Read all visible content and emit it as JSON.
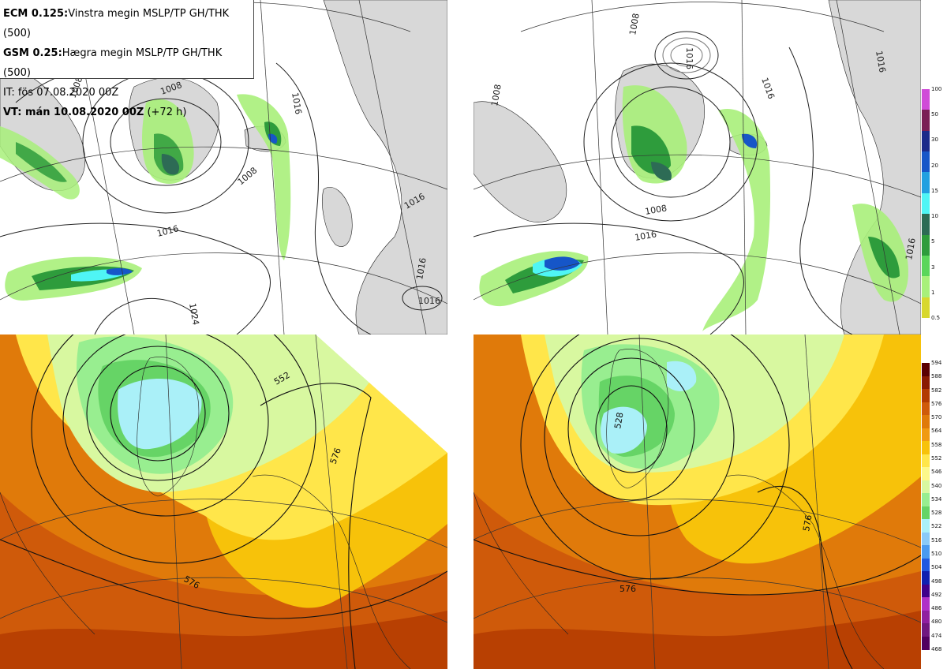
{
  "info": {
    "line1_bold": "ECM 0.125:",
    "line1_rest": "Vinstra megin MSLP/TP GH/THK (500)",
    "line2_bold": "GSM 0.25:",
    "line2_rest": "Hægra megin MSLP/TP GH/THK (500)",
    "line3": "IT: fös 07.08.2020 00Z",
    "line4_bold": "VT: mán 10.08.2020 00Z",
    "line4_rest": "(+72 h)"
  },
  "precip_colorbar": {
    "ticks": [
      "100",
      "50",
      "30",
      "20",
      "15",
      "10",
      "5",
      "3",
      "1",
      "0.5"
    ],
    "colors": [
      "#d04bd8",
      "#7a1f55",
      "#1b2a8a",
      "#1656c8",
      "#22a0e0",
      "#4ff5f5",
      "#2d6b55",
      "#2e9c3c",
      "#5bd65b",
      "#a8f07a",
      "#d8d82e"
    ]
  },
  "thk_colorbar": {
    "ticks": [
      "594",
      "588",
      "582",
      "576",
      "570",
      "564",
      "558",
      "552",
      "546",
      "540",
      "534",
      "528",
      "522",
      "516",
      "510",
      "504",
      "498",
      "492",
      "486",
      "480",
      "474",
      "468"
    ],
    "colors": [
      "#5a0000",
      "#8a1a00",
      "#b23a00",
      "#cf5a0a",
      "#e07a0a",
      "#f09a12",
      "#f7c20a",
      "#ffe64a",
      "#fcf88a",
      "#d8f8a0",
      "#98ee90",
      "#66d466",
      "#aaf0f8",
      "#8acaf8",
      "#4a9af0",
      "#2058e0",
      "#1020b0",
      "#40008a",
      "#b030c8",
      "#9020a0",
      "#701880",
      "#500060"
    ]
  },
  "maps": {
    "tl": {
      "isobars": [
        "1008",
        "1008",
        "1016",
        "1016",
        "1016",
        "1008",
        "1016",
        "1024",
        "1016"
      ]
    },
    "tr": {
      "isobars": [
        "1008",
        "1008",
        "1016",
        "1016",
        "1016",
        "1008",
        "1016",
        "1016"
      ]
    },
    "bl": {
      "heights": [
        "552",
        "576",
        "576"
      ]
    },
    "br": {
      "heights": [
        "528",
        "576",
        "576"
      ]
    }
  }
}
